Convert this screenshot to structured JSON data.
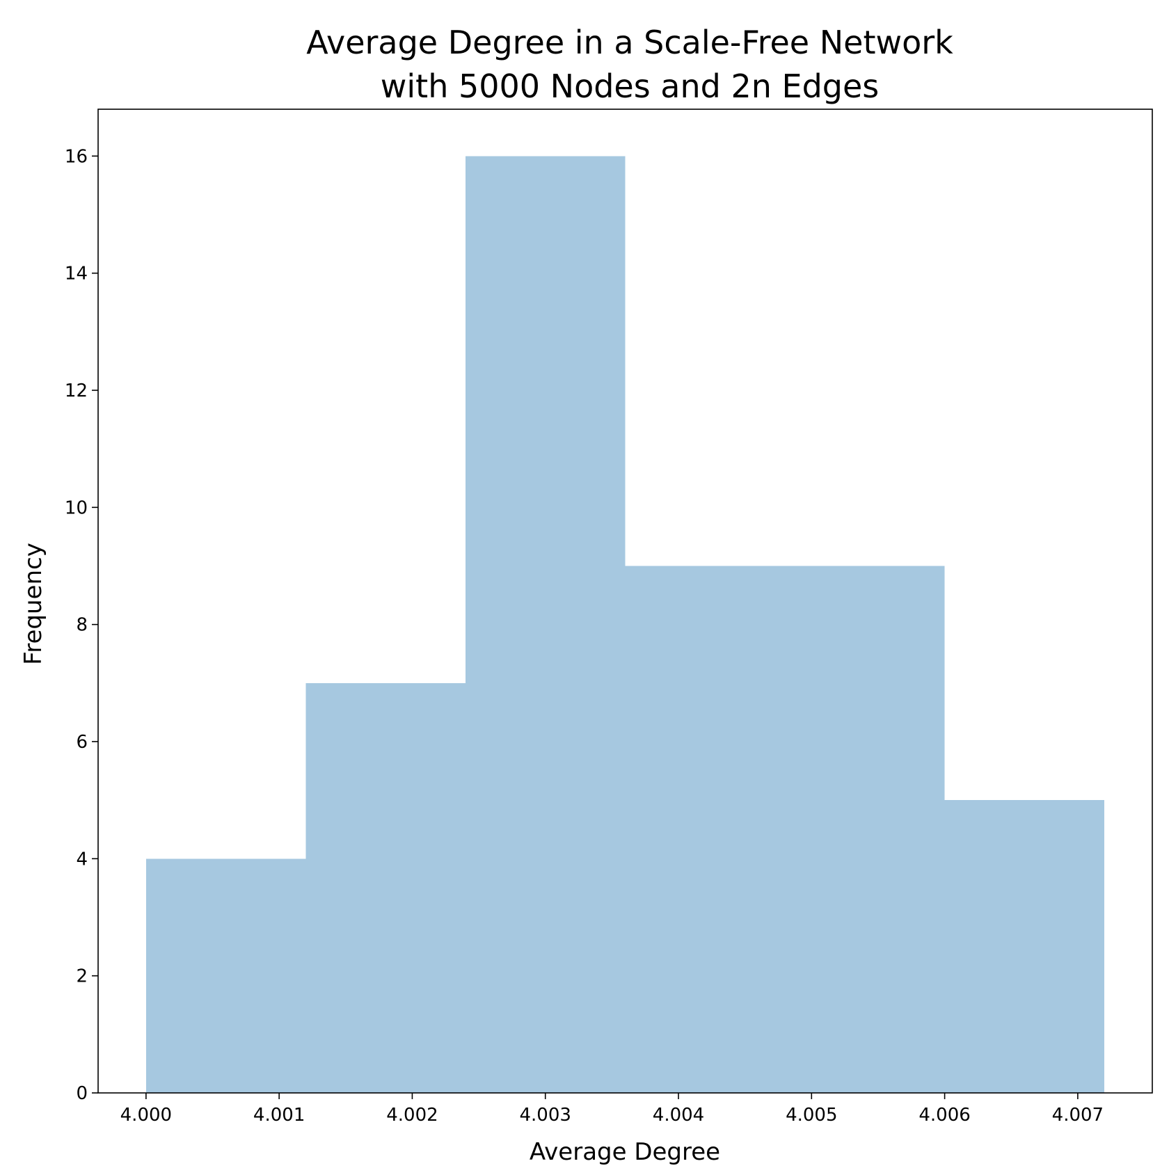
{
  "chart_data": {
    "type": "bar",
    "title_lines": [
      "Average Degree in a Scale-Free Network",
      "with 5000 Nodes and 2n Edges"
    ],
    "xlabel": "Average Degree",
    "ylabel": "Frequency",
    "xlim": [
      3.99964,
      4.00756
    ],
    "ylim": [
      0,
      16.8
    ],
    "xticks": [
      4.0,
      4.001,
      4.002,
      4.003,
      4.004,
      4.005,
      4.006,
      4.007
    ],
    "xtick_labels": [
      "4.000",
      "4.001",
      "4.002",
      "4.003",
      "4.004",
      "4.005",
      "4.006",
      "4.007"
    ],
    "yticks": [
      0,
      2,
      4,
      6,
      8,
      10,
      12,
      14,
      16
    ],
    "ytick_labels": [
      "0",
      "2",
      "4",
      "6",
      "8",
      "10",
      "12",
      "14",
      "16"
    ],
    "bins": [
      {
        "start": 4.0,
        "end": 4.0012,
        "count": 4
      },
      {
        "start": 4.0012,
        "end": 4.0024,
        "count": 7
      },
      {
        "start": 4.0024,
        "end": 4.0036,
        "count": 16
      },
      {
        "start": 4.0036,
        "end": 4.0048,
        "count": 9
      },
      {
        "start": 4.0048,
        "end": 4.006,
        "count": 9
      },
      {
        "start": 4.006,
        "end": 4.0072,
        "count": 5
      }
    ],
    "bar_color": "#a6c8e0",
    "grid": false,
    "legend": "none"
  }
}
